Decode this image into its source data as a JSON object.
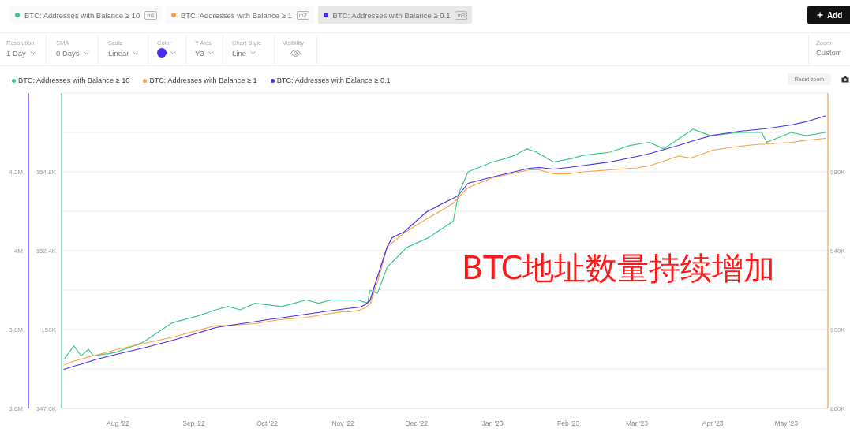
{
  "chart_data": {
    "type": "line",
    "x": [
      "2022-07-10",
      "2022-07-14",
      "2022-07-17",
      "2022-07-20",
      "2022-07-23",
      "2022-08-01",
      "2022-08-12",
      "2022-08-23",
      "2022-09-01",
      "2022-09-10",
      "2022-09-15",
      "2022-09-26",
      "2022-10-01",
      "2022-10-06",
      "2022-10-16",
      "2022-10-26",
      "2022-11-01",
      "2022-11-04",
      "2022-11-08",
      "2022-11-10",
      "2022-11-12",
      "2022-11-15",
      "2022-11-19",
      "2022-11-21",
      "2022-11-26",
      "2022-12-01",
      "2022-12-05",
      "2022-12-12",
      "2022-12-16",
      "2022-12-18",
      "2022-12-22",
      "2023-01-01",
      "2023-01-16",
      "2023-01-20",
      "2023-01-26",
      "2023-02-01",
      "2023-02-07",
      "2023-02-18",
      "2023-03-01",
      "2023-03-06",
      "2023-03-18",
      "2023-03-23",
      "2023-04-01",
      "2023-04-12",
      "2023-04-20",
      "2023-04-22",
      "2023-05-03",
      "2023-05-09",
      "2023-05-17"
    ],
    "series": [
      {
        "name": "BTC: Addresses with Balance ≥ 10",
        "color": "#3cc98a",
        "axis": "y3",
        "x": [
          "2022-07-10",
          "2022-07-14",
          "2022-07-17",
          "2022-07-20",
          "2022-07-22",
          "2022-07-31",
          "2022-08-11",
          "2022-08-23",
          "2022-09-02",
          "2022-09-10",
          "2022-09-15",
          "2022-09-20",
          "2022-09-26",
          "2022-10-07",
          "2022-10-12",
          "2022-10-17",
          "2022-10-22",
          "2022-10-27",
          "2022-11-07",
          "2022-11-11",
          "2022-11-12",
          "2022-11-15",
          "2022-11-19",
          "2022-11-27",
          "2022-12-06",
          "2022-12-16",
          "2022-12-18",
          "2022-12-22",
          "2023-01-01",
          "2023-01-06",
          "2023-01-10",
          "2023-01-15",
          "2023-01-19",
          "2023-01-26",
          "2023-02-02",
          "2023-02-07",
          "2023-02-18",
          "2023-02-26",
          "2023-03-06",
          "2023-03-12",
          "2023-03-18",
          "2023-03-24",
          "2023-03-31",
          "2023-04-12",
          "2023-04-21",
          "2023-04-23",
          "2023-05-03",
          "2023-05-09",
          "2023-05-17"
        ],
        "values": [
          149100,
          149500,
          149200,
          149400,
          149200,
          149300,
          149600,
          150200,
          150400,
          150600,
          150700,
          150600,
          150800,
          150700,
          150800,
          150900,
          150800,
          150900,
          150900,
          150800,
          151200,
          151100,
          151900,
          152500,
          152800,
          153300,
          154100,
          154800,
          155100,
          155200,
          155300,
          155500,
          155400,
          155100,
          155200,
          155300,
          155400,
          155600,
          155700,
          155500,
          155800,
          156100,
          155900,
          156000,
          156000,
          155700,
          156000,
          155900,
          156000
        ]
      },
      {
        "name": "BTC: Addresses with Balance ≥ 1",
        "color": "#f5a445",
        "axis": "y2",
        "values": [
          882000,
          884000,
          885000,
          886000,
          887000,
          890000,
          893000,
          896000,
          899000,
          902000,
          902000,
          903000,
          904000,
          905000,
          906000,
          908000,
          909000,
          909000,
          910000,
          911000,
          913000,
          924000,
          942000,
          944000,
          949000,
          953000,
          956000,
          961000,
          964000,
          967000,
          972000,
          977000,
          981000,
          981000,
          979000,
          979000,
          980000,
          981000,
          982000,
          983000,
          988000,
          987000,
          991000,
          993000,
          994000,
          994000,
          995000,
          996000,
          997000
        ]
      },
      {
        "name": "BTC: Addresses with Balance ≥ 0.1",
        "color": "#4a2ef0",
        "values": [
          3699000,
          3707000,
          3712000,
          3718000,
          3724000,
          3738000,
          3754000,
          3772000,
          3788000,
          3805000,
          3810000,
          3820000,
          3825000,
          3829000,
          3838000,
          3847000,
          3852000,
          3854000,
          3857000,
          3863000,
          3874000,
          3933000,
          4010000,
          4033000,
          4048000,
          4076000,
          4098000,
          4121000,
          4133000,
          4140000,
          4171000,
          4187000,
          4209000,
          4211000,
          4207000,
          4211000,
          4216000,
          4225000,
          4239000,
          4246000,
          4267000,
          4277000,
          4293000,
          4303000,
          4308000,
          4309000,
          4319000,
          4327000,
          4342000
        ]
      }
    ],
    "xlim": [
      "2022-07-09",
      "2023-05-18"
    ],
    "xticks": [
      {
        "value": "2022-08-01",
        "label": "Aug '22"
      },
      {
        "value": "2022-09-01",
        "label": "Sep '22"
      },
      {
        "value": "2022-10-01",
        "label": "Oct '22"
      },
      {
        "value": "2022-11-01",
        "label": "Nov '22"
      },
      {
        "value": "2022-12-01",
        "label": "Dec '22"
      },
      {
        "value": "2023-01-01",
        "label": "Jan '23"
      },
      {
        "value": "2023-02-01",
        "label": "Feb '23"
      },
      {
        "value": "2023-03-01",
        "label": "Mar '23"
      },
      {
        "value": "2023-04-01",
        "label": "Apr '23"
      },
      {
        "value": "2023-05-01",
        "label": "May '23"
      }
    ],
    "ylim": [
      3600000,
      4400000
    ],
    "yticks": [
      {
        "value": 3600000,
        "label": "3.6M"
      },
      {
        "value": 3700000,
        "label": null
      },
      {
        "value": 3800000,
        "label": "3.8M"
      },
      {
        "value": 3900000,
        "label": null
      },
      {
        "value": 4000000,
        "label": "4M"
      },
      {
        "value": 4100000,
        "label": null
      },
      {
        "value": 4200000,
        "label": "4.2M"
      },
      {
        "value": 4300000,
        "label": null
      }
    ],
    "y2lim": [
      860000,
      1020000
    ],
    "y2ticks": [
      {
        "value": 860000,
        "label": "860K"
      },
      {
        "value": 900000,
        "label": "900K"
      },
      {
        "value": 940000,
        "label": "940K"
      },
      {
        "value": 980000,
        "label": "980K"
      }
    ],
    "y3lim": [
      147600,
      157200
    ],
    "y3ticks": [
      {
        "value": 147600,
        "label": "147.6K"
      },
      {
        "value": 150000,
        "label": "150K"
      },
      {
        "value": 152400,
        "label": "152.4K"
      },
      {
        "value": 154800,
        "label": "154.8K"
      }
    ],
    "grid": "y",
    "legend": "top left",
    "annotations": [
      "BTC地址数量持续增加",
      "m1",
      "m2",
      "m3",
      "Add",
      "Resolution",
      "1 Day",
      "SMA",
      "0 Days",
      "Scale",
      "Linear",
      "Color",
      "Y Axis",
      "Y3",
      "Chart Style",
      "Line",
      "Visibility",
      "Zoom",
      "Custom",
      "Reset zoom"
    ]
  }
}
